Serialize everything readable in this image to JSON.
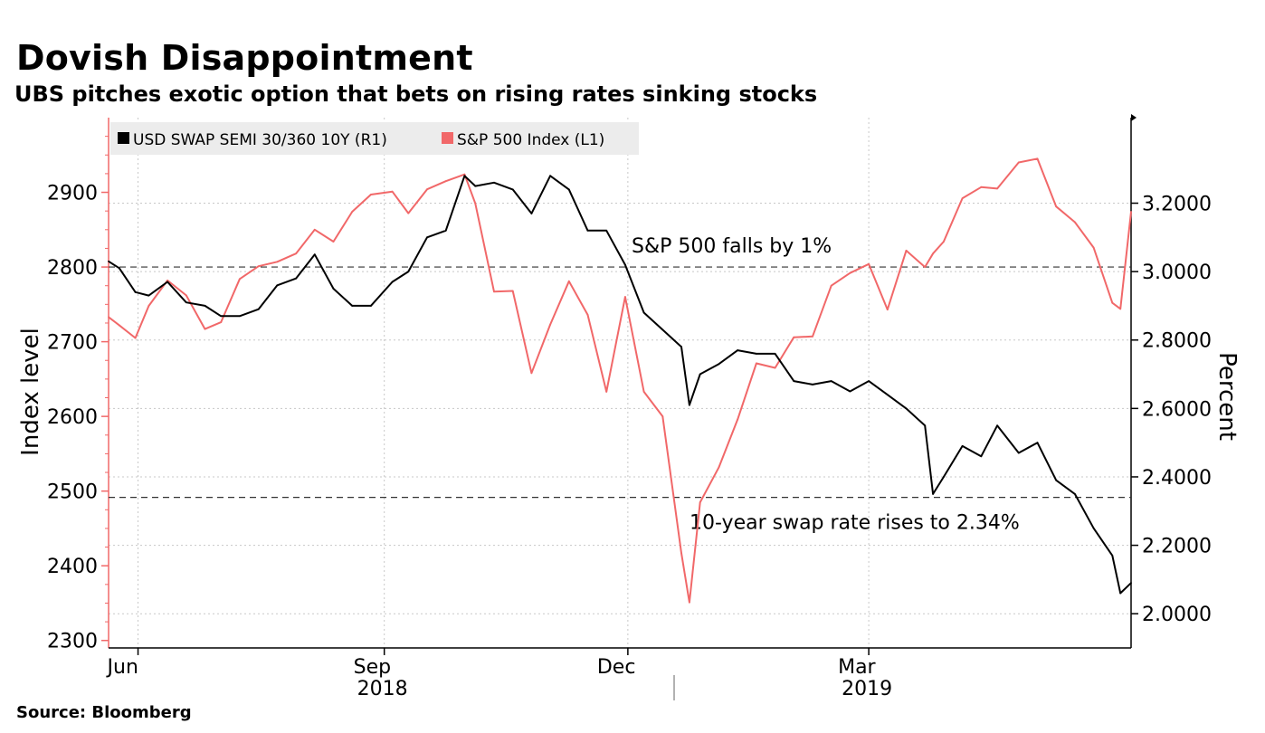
{
  "title": "Dovish Disappointment",
  "subtitle": "UBS pitches exotic option that bets on rising rates sinking stocks",
  "source": "Source: Bloomberg",
  "colors": {
    "swap": "#000000",
    "sp500": "#f16869",
    "grid": "#c8c8c8",
    "legend_bg": "#ececec"
  },
  "chart_data": {
    "type": "line",
    "title": "Dovish Disappointment",
    "subtitle": "UBS pitches exotic option that bets on rising rates sinking stocks",
    "legend_placement": "top-left",
    "grid": true,
    "x_range": [
      "2018-05-21",
      "2019-06-07"
    ],
    "x_ticks": [
      {
        "date": "2018-06-01",
        "label": "Jun"
      },
      {
        "date": "2018-09-01",
        "label": "Sep"
      },
      {
        "date": "2018-12-01",
        "label": "Dec"
      },
      {
        "date": "2019-03-01",
        "label": "Mar"
      }
    ],
    "year_labels": [
      {
        "date": "2018-09-01",
        "label": "2018"
      },
      {
        "date": "2019-03-01",
        "label": "2019"
      }
    ],
    "y_left": {
      "label": "Index level",
      "range": [
        2290,
        3000
      ],
      "ticks": [
        2300,
        2400,
        2500,
        2600,
        2700,
        2800,
        2900
      ]
    },
    "y_right": {
      "label": "Percent",
      "range": [
        1.9,
        3.45
      ],
      "ticks": [
        "2.0000",
        "2.2000",
        "2.4000",
        "2.6000",
        "2.8000",
        "3.0000",
        "3.2000"
      ]
    },
    "series": [
      {
        "name": "USD SWAP SEMI 30/360 10Y (R1)",
        "axis": "right",
        "x": [
          "2018-05-21",
          "2018-05-25",
          "2018-05-31",
          "2018-06-05",
          "2018-06-12",
          "2018-06-19",
          "2018-06-26",
          "2018-07-02",
          "2018-07-09",
          "2018-07-16",
          "2018-07-23",
          "2018-07-30",
          "2018-08-06",
          "2018-08-13",
          "2018-08-20",
          "2018-08-27",
          "2018-09-04",
          "2018-09-10",
          "2018-09-17",
          "2018-09-24",
          "2018-10-01",
          "2018-10-05",
          "2018-10-12",
          "2018-10-19",
          "2018-10-26",
          "2018-11-02",
          "2018-11-09",
          "2018-11-16",
          "2018-11-23",
          "2018-11-30",
          "2018-12-07",
          "2018-12-14",
          "2018-12-21",
          "2018-12-24",
          "2018-12-28",
          "2019-01-04",
          "2019-01-11",
          "2019-01-18",
          "2019-01-25",
          "2019-02-01",
          "2019-02-08",
          "2019-02-15",
          "2019-02-22",
          "2019-03-01",
          "2019-03-08",
          "2019-03-15",
          "2019-03-22",
          "2019-03-25",
          "2019-03-29",
          "2019-04-05",
          "2019-04-12",
          "2019-04-18",
          "2019-04-26",
          "2019-05-03",
          "2019-05-10",
          "2019-05-17",
          "2019-05-24",
          "2019-05-31",
          "2019-06-03",
          "2019-06-07"
        ],
        "values": [
          3.03,
          3.01,
          2.94,
          2.93,
          2.97,
          2.91,
          2.9,
          2.87,
          2.87,
          2.89,
          2.96,
          2.98,
          3.05,
          2.95,
          2.9,
          2.9,
          2.97,
          3.0,
          3.1,
          3.12,
          3.28,
          3.25,
          3.26,
          3.24,
          3.17,
          3.28,
          3.24,
          3.12,
          3.12,
          3.02,
          2.88,
          2.83,
          2.78,
          2.61,
          2.7,
          2.73,
          2.77,
          2.76,
          2.76,
          2.68,
          2.67,
          2.68,
          2.65,
          2.68,
          2.64,
          2.6,
          2.55,
          2.35,
          2.4,
          2.49,
          2.46,
          2.55,
          2.47,
          2.5,
          2.39,
          2.35,
          2.25,
          2.17,
          2.06,
          2.09
        ]
      },
      {
        "name": "S&P 500 Index (L1)",
        "axis": "left",
        "x": [
          "2018-05-21",
          "2018-05-25",
          "2018-05-31",
          "2018-06-05",
          "2018-06-12",
          "2018-06-19",
          "2018-06-26",
          "2018-07-02",
          "2018-07-09",
          "2018-07-16",
          "2018-07-23",
          "2018-07-30",
          "2018-08-06",
          "2018-08-13",
          "2018-08-20",
          "2018-08-27",
          "2018-09-04",
          "2018-09-10",
          "2018-09-17",
          "2018-09-24",
          "2018-10-01",
          "2018-10-05",
          "2018-10-12",
          "2018-10-19",
          "2018-10-26",
          "2018-11-02",
          "2018-11-09",
          "2018-11-16",
          "2018-11-23",
          "2018-11-30",
          "2018-12-07",
          "2018-12-14",
          "2018-12-21",
          "2018-12-24",
          "2018-12-28",
          "2019-01-04",
          "2019-01-11",
          "2019-01-18",
          "2019-01-25",
          "2019-02-01",
          "2019-02-08",
          "2019-02-15",
          "2019-02-22",
          "2019-03-01",
          "2019-03-08",
          "2019-03-15",
          "2019-03-22",
          "2019-03-25",
          "2019-03-29",
          "2019-04-05",
          "2019-04-12",
          "2019-04-18",
          "2019-04-26",
          "2019-05-03",
          "2019-05-10",
          "2019-05-17",
          "2019-05-24",
          "2019-05-31",
          "2019-06-03",
          "2019-06-07"
        ],
        "values": [
          2733,
          2722,
          2705,
          2748,
          2782,
          2762,
          2717,
          2726,
          2784,
          2801,
          2807,
          2818,
          2850,
          2834,
          2874,
          2897,
          2901,
          2872,
          2904,
          2915,
          2924,
          2885,
          2767,
          2768,
          2658,
          2723,
          2781,
          2736,
          2633,
          2760,
          2633,
          2600,
          2417,
          2351,
          2485,
          2532,
          2596,
          2671,
          2665,
          2706,
          2707,
          2775,
          2792,
          2804,
          2743,
          2822,
          2800,
          2818,
          2834,
          2892,
          2907,
          2905,
          2940,
          2945,
          2881,
          2860,
          2826,
          2752,
          2744,
          2874
        ]
      }
    ],
    "annotations": [
      {
        "text": "S&P 500 falls by 1%",
        "axis": "left",
        "y": 2800
      },
      {
        "text": "10-year swap rate rises to 2.34%",
        "axis": "right",
        "y": 2.34
      }
    ]
  }
}
